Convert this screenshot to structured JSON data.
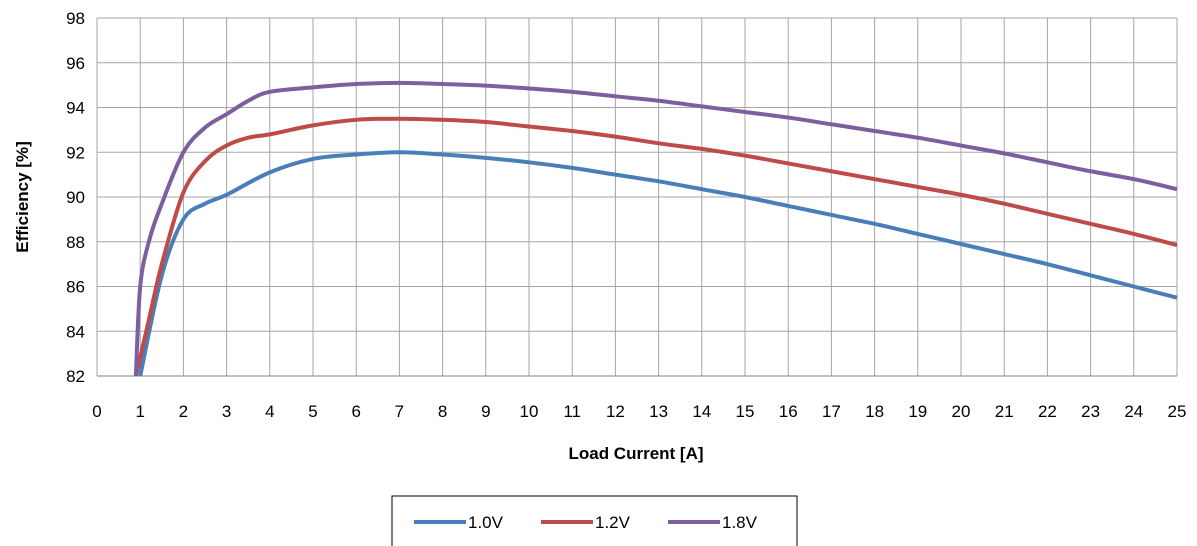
{
  "chart_data": {
    "type": "line",
    "title": "",
    "xlabel": "Load Current [A]",
    "ylabel": "Efficiency [%]",
    "xlim": [
      0,
      25
    ],
    "ylim": [
      82,
      98
    ],
    "x_ticks": [
      0,
      1,
      2,
      3,
      4,
      5,
      6,
      7,
      8,
      9,
      10,
      11,
      12,
      13,
      14,
      15,
      16,
      17,
      18,
      19,
      20,
      21,
      22,
      23,
      24,
      25
    ],
    "y_ticks": [
      82,
      84,
      86,
      88,
      90,
      92,
      94,
      96,
      98
    ],
    "grid": true,
    "legend_position": "bottom",
    "series": [
      {
        "name": "1.0V",
        "color": "#4a7ebb",
        "points": [
          [
            1.0,
            82
          ],
          [
            1.5,
            86.5
          ],
          [
            2,
            89
          ],
          [
            2.5,
            89.7
          ],
          [
            3,
            90.1
          ],
          [
            4,
            91.1
          ],
          [
            5,
            91.7
          ],
          [
            6,
            91.9
          ],
          [
            7,
            92.0
          ],
          [
            8,
            91.9
          ],
          [
            9,
            91.75
          ],
          [
            10,
            91.55
          ],
          [
            11,
            91.3
          ],
          [
            12,
            91.0
          ],
          [
            13,
            90.7
          ],
          [
            14,
            90.35
          ],
          [
            15,
            90.0
          ],
          [
            16,
            89.6
          ],
          [
            17,
            89.2
          ],
          [
            18,
            88.8
          ],
          [
            19,
            88.35
          ],
          [
            20,
            87.9
          ],
          [
            21,
            87.45
          ],
          [
            22,
            87.0
          ],
          [
            23,
            86.5
          ],
          [
            24,
            86.0
          ],
          [
            25,
            85.5
          ]
        ]
      },
      {
        "name": "1.2V",
        "color": "#be4b48",
        "points": [
          [
            0.9,
            82
          ],
          [
            1.2,
            84.5
          ],
          [
            1.5,
            87
          ],
          [
            2,
            90.2
          ],
          [
            2.5,
            91.6
          ],
          [
            3,
            92.3
          ],
          [
            3.5,
            92.65
          ],
          [
            4,
            92.8
          ],
          [
            5,
            93.2
          ],
          [
            6,
            93.45
          ],
          [
            7,
            93.5
          ],
          [
            8,
            93.45
          ],
          [
            9,
            93.35
          ],
          [
            10,
            93.15
          ],
          [
            11,
            92.95
          ],
          [
            12,
            92.7
          ],
          [
            13,
            92.4
          ],
          [
            14,
            92.15
          ],
          [
            15,
            91.85
          ],
          [
            16,
            91.5
          ],
          [
            17,
            91.15
          ],
          [
            18,
            90.8
          ],
          [
            19,
            90.45
          ],
          [
            20,
            90.1
          ],
          [
            21,
            89.7
          ],
          [
            22,
            89.25
          ],
          [
            23,
            88.8
          ],
          [
            24,
            88.35
          ],
          [
            25,
            87.85
          ]
        ]
      },
      {
        "name": "1.8V",
        "color": "#7d5fa0",
        "points": [
          [
            0.9,
            82
          ],
          [
            1.0,
            86
          ],
          [
            1.2,
            88
          ],
          [
            1.5,
            89.7
          ],
          [
            2,
            92
          ],
          [
            2.5,
            93.1
          ],
          [
            3,
            93.7
          ],
          [
            3.5,
            94.3
          ],
          [
            4,
            94.7
          ],
          [
            5,
            94.9
          ],
          [
            6,
            95.05
          ],
          [
            7,
            95.1
          ],
          [
            8,
            95.05
          ],
          [
            9,
            94.98
          ],
          [
            10,
            94.85
          ],
          [
            11,
            94.7
          ],
          [
            12,
            94.5
          ],
          [
            13,
            94.3
          ],
          [
            14,
            94.05
          ],
          [
            15,
            93.8
          ],
          [
            16,
            93.55
          ],
          [
            17,
            93.25
          ],
          [
            18,
            92.95
          ],
          [
            19,
            92.65
          ],
          [
            20,
            92.3
          ],
          [
            21,
            91.95
          ],
          [
            22,
            91.55
          ],
          [
            23,
            91.15
          ],
          [
            24,
            90.8
          ],
          [
            25,
            90.35
          ]
        ]
      }
    ]
  }
}
